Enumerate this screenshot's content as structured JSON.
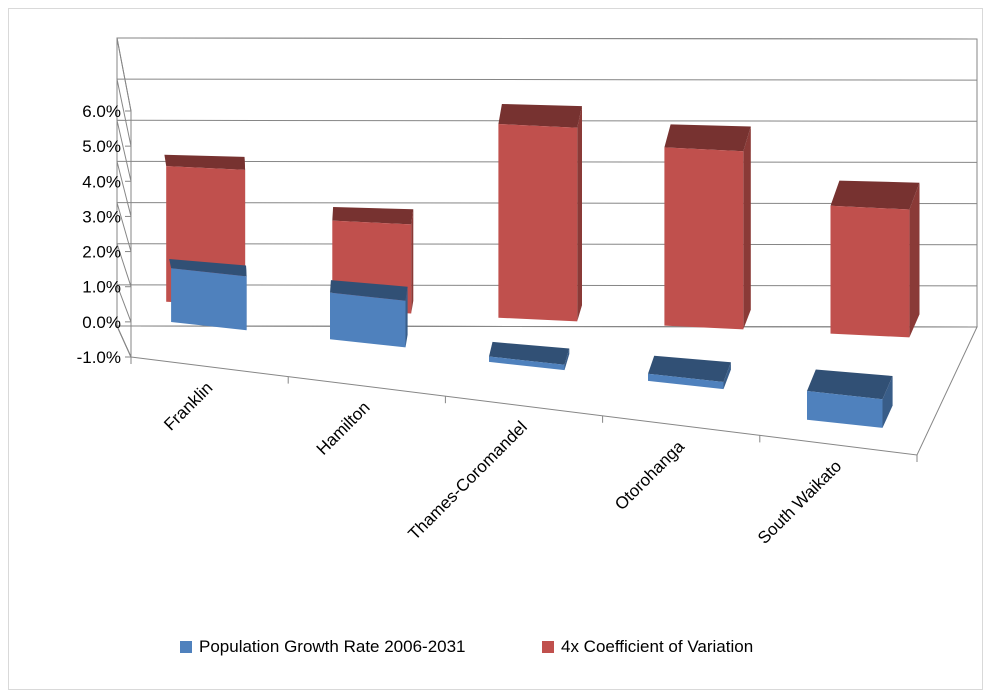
{
  "chart_data": {
    "type": "bar",
    "categories": [
      "Franklin",
      "Hamilton",
      "Thames-Coromandel",
      "Otorohanga",
      "South Waikato"
    ],
    "series": [
      {
        "name": "Population Growth Rate 2006-2031",
        "values": [
          1.5,
          1.3,
          -0.15,
          -0.2,
          -0.8
        ],
        "color": "#4f81bd"
      },
      {
        "name": "4x Coefficient of Variation",
        "values": [
          3.5,
          2.3,
          5.0,
          4.6,
          3.3
        ],
        "color": "#c0504d"
      }
    ],
    "y_ticks": [
      "6.0%",
      "5.0%",
      "4.0%",
      "3.0%",
      "2.0%",
      "1.0%",
      "0.0%",
      "-1.0%"
    ],
    "ylim": [
      -1.0,
      6.0
    ],
    "grid": true,
    "legend_position": "bottom",
    "view": "3d-perspective"
  }
}
